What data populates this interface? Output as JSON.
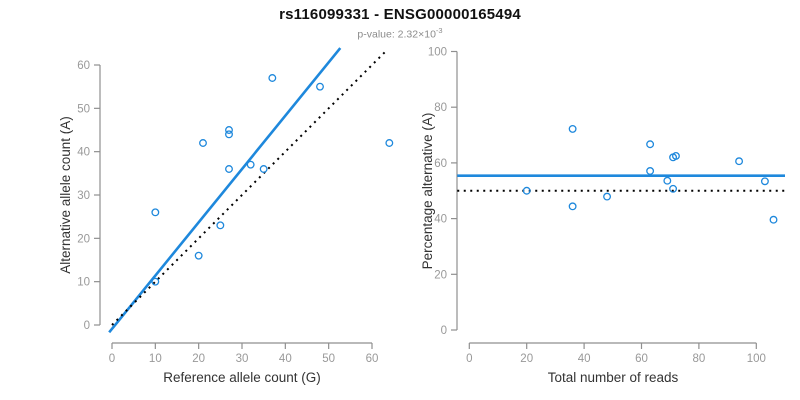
{
  "header": {
    "title": "rs116099331 - ENSG00000165494",
    "subtitle_prefix": "p-value: 2.32×10",
    "subtitle_exponent": "-3"
  },
  "colors": {
    "accent_blue": "#1E88DC",
    "dotted_black": "#000000",
    "axis_gray": "#8F8F8F",
    "tick_label_gray": "#999999",
    "axis_title_color": "#333333"
  },
  "chart_data": [
    {
      "type": "scatter",
      "name": "allele-counts-panel",
      "xlabel": "Reference allele count (G)",
      "ylabel": "Alternative allele count (A)",
      "xlim": [
        0,
        64
      ],
      "ylim": [
        0,
        60
      ],
      "xticks": [
        0,
        10,
        20,
        30,
        40,
        50,
        60
      ],
      "yticks": [
        0,
        10,
        20,
        30,
        40,
        50,
        60
      ],
      "grid": false,
      "points": [
        [
          10,
          10
        ],
        [
          10,
          26
        ],
        [
          20,
          16
        ],
        [
          25,
          23
        ],
        [
          21,
          42
        ],
        [
          27,
          44
        ],
        [
          27,
          45
        ],
        [
          27,
          36
        ],
        [
          32,
          37
        ],
        [
          35,
          36
        ],
        [
          37,
          57
        ],
        [
          48,
          55
        ],
        [
          64,
          42
        ]
      ],
      "lines": [
        {
          "kind": "abline",
          "label": "fit-line",
          "slope": 1.23,
          "intercept": -0.9,
          "style": "solid",
          "color_key": "accent_blue",
          "width": 2.6,
          "y_span": [
            -1.7,
            63.9
          ]
        },
        {
          "kind": "abline",
          "label": "identity-line",
          "slope": 1,
          "intercept": 0,
          "style": "dotted",
          "color_key": "dotted_black",
          "width": 2,
          "y_span": [
            0,
            63.6
          ]
        }
      ]
    },
    {
      "type": "scatter",
      "name": "percentage-panel",
      "xlabel": "Total number of reads",
      "ylabel": "Percentage alternative (A)",
      "xlim": [
        0,
        106
      ],
      "ylim": [
        0,
        100
      ],
      "xticks": [
        0,
        20,
        40,
        60,
        80,
        100
      ],
      "yticks": [
        0,
        20,
        40,
        60,
        80,
        100
      ],
      "grid": false,
      "points": [
        [
          20,
          50
        ],
        [
          36,
          72.2
        ],
        [
          36,
          44.4
        ],
        [
          48,
          47.9
        ],
        [
          63,
          66.7
        ],
        [
          71,
          62.0
        ],
        [
          72,
          62.5
        ],
        [
          63,
          57.1
        ],
        [
          69,
          53.6
        ],
        [
          71,
          50.7
        ],
        [
          94,
          60.6
        ],
        [
          103,
          53.4
        ],
        [
          106,
          39.6
        ]
      ],
      "lines": [
        {
          "kind": "hline",
          "label": "mean-percentage-line",
          "y": 55.4,
          "style": "solid",
          "color_key": "accent_blue",
          "width": 2.6,
          "x_span": [
            -4.2,
            110
          ]
        },
        {
          "kind": "hline",
          "label": "fifty-percent-line",
          "y": 50,
          "style": "dotted",
          "color_key": "dotted_black",
          "width": 2,
          "x_span": [
            -4.2,
            110
          ]
        }
      ]
    }
  ]
}
